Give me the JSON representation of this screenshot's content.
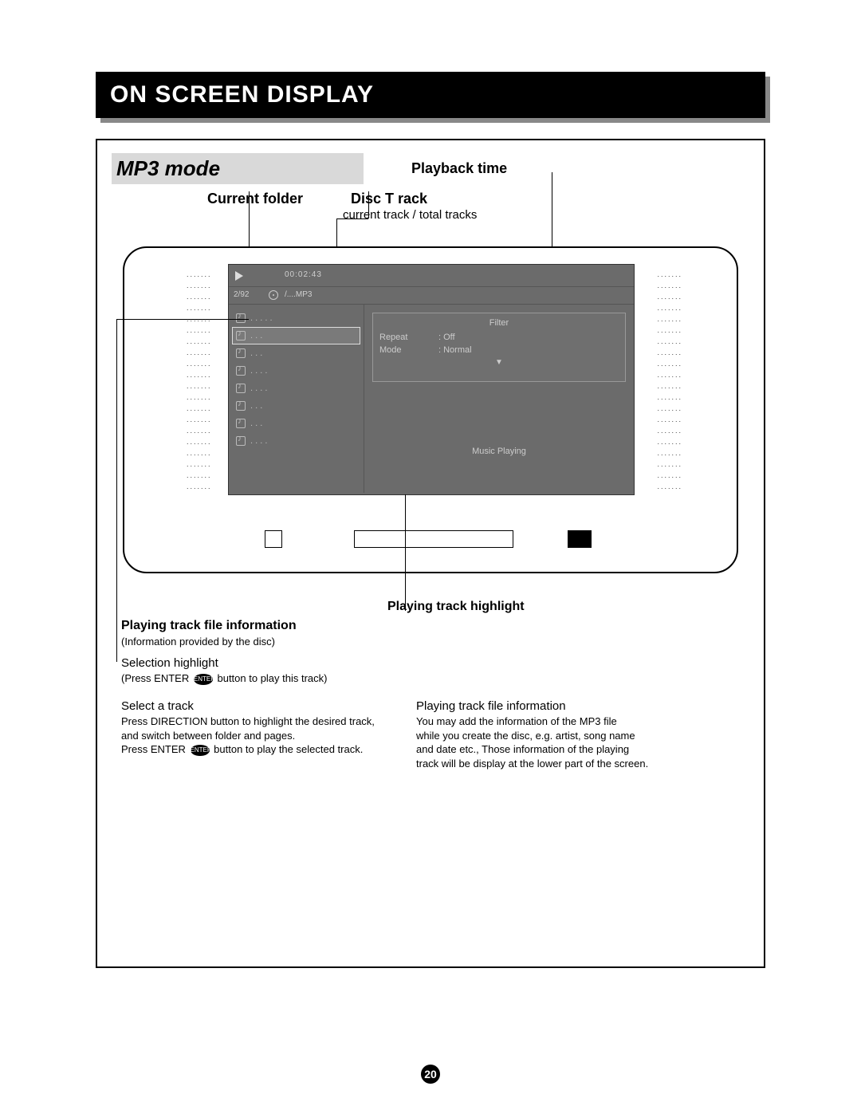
{
  "page": {
    "title": "ON SCREEN DISPLAY",
    "mode_label": "MP3 mode",
    "page_number": "20"
  },
  "labels": {
    "playback_time": "Playback  time",
    "current_folder": "Current folder",
    "disc_track": "Disc T rack",
    "disc_track_sub": "current track / total tracks",
    "playing_highlight": "Playing track  highlight",
    "playing_file_info": "Playing track   file information",
    "playing_file_info_sub": "(Information provided by  the disc)",
    "selection_highlight": "Selection highlight",
    "selection_highlight_sub_a": "(Press  ENTER",
    "selection_highlight_sub_b": "button to play   this track)",
    "select_a_track": "Select a  track",
    "select_line1": "Press  DIRECTION   button to highlight  the desired track,",
    "select_line2": "and  switch between folder and pages.",
    "select_line3a": "Press  ENTER",
    "select_line3b": "button to play  the selected track.",
    "right_heading": "Playing track  file information",
    "right_line1": "You  may add the  information of the  MP3 file",
    "right_line2": "while you create   the disc, e.g.   artist, song name",
    "right_line3": "and date etc.,   Those information of    the playing",
    "right_line4": "track will be  display at the  lower part of   the screen.",
    "enter": "ENTER"
  },
  "screen": {
    "playback_time": "00:02:43",
    "track_counter": "2/92",
    "path": "/....MP3",
    "filter_title": "Filter",
    "repeat_label": "Repeat",
    "repeat_value": ":  Off",
    "mode_label": "Mode",
    "mode_value": ":  Normal",
    "arrow": "▼",
    "status": "Music Playing",
    "track_rows": [
      ". . . . .",
      ". . .",
      ". . .",
      ". . . .",
      ". . . .",
      ". . .",
      ". . .",
      ". . . ."
    ],
    "selected_index": 1
  },
  "style": {
    "bg": "#ffffff",
    "screen_bg": "#6b6b6b",
    "title_bg": "#000000",
    "mode_bg": "#d9d9d9"
  }
}
